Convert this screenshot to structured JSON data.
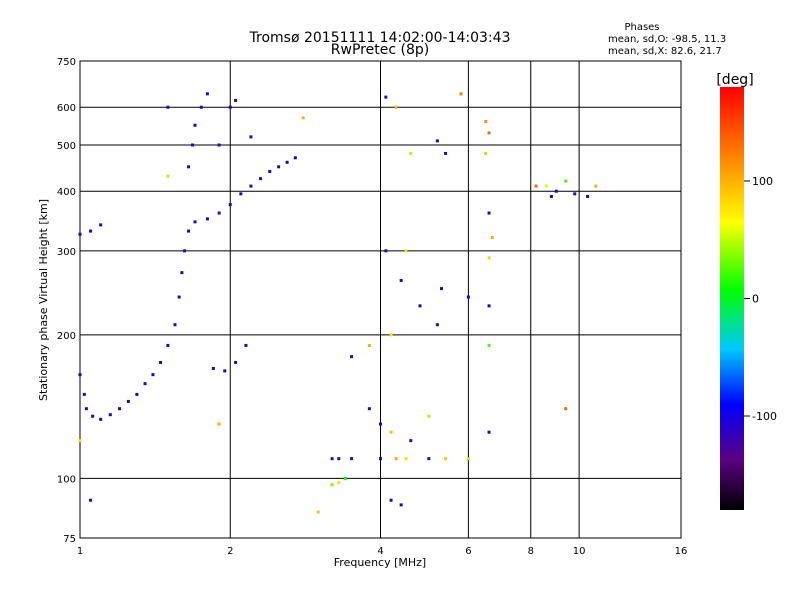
{
  "chart_data": {
    "type": "scatter",
    "title": "Tromsø 20151111 14:02:00-14:03:43",
    "subtitle": "RwPretec (8p)",
    "xlabel": "Frequency [MHz]",
    "ylabel": "Stationary phase Virtual Height [km]",
    "x_scale": "log",
    "y_scale": "log",
    "xlim": [
      1,
      16
    ],
    "ylim": [
      75,
      750
    ],
    "grid": true,
    "x_ticks": [
      1,
      2,
      4,
      6,
      8,
      10,
      16
    ],
    "y_ticks": [
      75,
      100,
      200,
      300,
      400,
      500,
      600,
      750
    ],
    "x_gridlines": [
      2,
      4,
      6,
      8,
      10
    ],
    "y_gridlines": [
      100,
      200,
      300,
      400,
      500,
      600
    ],
    "stats": {
      "heading": "Phases",
      "line_o": "mean, sd,O: -98.5, 11.3",
      "line_x": "mean, sd,X:  82.6, 21.7"
    },
    "colorbar": {
      "label": "[deg]",
      "range": [
        -180,
        180
      ],
      "ticks": [
        100,
        0,
        -100
      ],
      "colors": [
        "#000000",
        "#5a0080",
        "#0000ff",
        "#00c8ff",
        "#00ff00",
        "#ffff00",
        "#ff8000",
        "#ff0000"
      ]
    },
    "series": [
      {
        "points": [
          {
            "x": 1.0,
            "y": 165,
            "c": -95
          },
          {
            "x": 1.02,
            "y": 150,
            "c": -100
          },
          {
            "x": 1.03,
            "y": 140,
            "c": -97
          },
          {
            "x": 1.06,
            "y": 135,
            "c": -102
          },
          {
            "x": 1.1,
            "y": 133,
            "c": -96
          },
          {
            "x": 1.15,
            "y": 136,
            "c": -99
          },
          {
            "x": 1.2,
            "y": 140,
            "c": -104
          },
          {
            "x": 1.25,
            "y": 145,
            "c": -97
          },
          {
            "x": 1.3,
            "y": 150,
            "c": -95
          },
          {
            "x": 1.35,
            "y": 158,
            "c": -100
          },
          {
            "x": 1.4,
            "y": 165,
            "c": -98
          },
          {
            "x": 1.45,
            "y": 175,
            "c": -103
          },
          {
            "x": 1.5,
            "y": 190,
            "c": -96
          },
          {
            "x": 1.55,
            "y": 210,
            "c": -99
          },
          {
            "x": 1.58,
            "y": 240,
            "c": -101
          },
          {
            "x": 1.6,
            "y": 270,
            "c": -97
          },
          {
            "x": 1.62,
            "y": 300,
            "c": -100
          },
          {
            "x": 1.65,
            "y": 330,
            "c": -96
          },
          {
            "x": 1.7,
            "y": 345,
            "c": -102
          },
          {
            "x": 1.8,
            "y": 350,
            "c": -98
          },
          {
            "x": 1.9,
            "y": 360,
            "c": -100
          },
          {
            "x": 2.0,
            "y": 375,
            "c": -97
          },
          {
            "x": 2.1,
            "y": 395,
            "c": -101
          },
          {
            "x": 2.2,
            "y": 410,
            "c": -99
          },
          {
            "x": 2.3,
            "y": 425,
            "c": -96
          },
          {
            "x": 2.4,
            "y": 440,
            "c": -100
          },
          {
            "x": 2.5,
            "y": 450,
            "c": -98
          },
          {
            "x": 2.6,
            "y": 460,
            "c": -102
          },
          {
            "x": 2.7,
            "y": 470,
            "c": -97
          },
          {
            "x": 1.65,
            "y": 450,
            "c": -99
          },
          {
            "x": 1.68,
            "y": 500,
            "c": -100
          },
          {
            "x": 1.7,
            "y": 550,
            "c": -98
          },
          {
            "x": 1.75,
            "y": 600,
            "c": -101
          },
          {
            "x": 1.8,
            "y": 640,
            "c": -97
          },
          {
            "x": 1.9,
            "y": 500,
            "c": -99
          },
          {
            "x": 2.0,
            "y": 600,
            "c": -100
          },
          {
            "x": 2.05,
            "y": 620,
            "c": -96
          },
          {
            "x": 2.2,
            "y": 520,
            "c": -98
          },
          {
            "x": 1.0,
            "y": 325,
            "c": -100
          },
          {
            "x": 1.05,
            "y": 330,
            "c": -97
          },
          {
            "x": 1.1,
            "y": 340,
            "c": -101
          },
          {
            "x": 1.85,
            "y": 170,
            "c": -96
          },
          {
            "x": 1.95,
            "y": 168,
            "c": -99
          },
          {
            "x": 2.05,
            "y": 175,
            "c": -100
          },
          {
            "x": 2.15,
            "y": 190,
            "c": -98
          },
          {
            "x": 3.2,
            "y": 110,
            "c": -100
          },
          {
            "x": 3.3,
            "y": 110,
            "c": -97
          },
          {
            "x": 3.5,
            "y": 110,
            "c": -101
          },
          {
            "x": 3.2,
            "y": 97,
            "c": 50
          },
          {
            "x": 3.3,
            "y": 98,
            "c": 90
          },
          {
            "x": 3.4,
            "y": 100,
            "c": 20
          },
          {
            "x": 4.1,
            "y": 630,
            "c": -100
          },
          {
            "x": 4.3,
            "y": 600,
            "c": 110
          },
          {
            "x": 4.6,
            "y": 480,
            "c": 60
          },
          {
            "x": 5.2,
            "y": 510,
            "c": -99
          },
          {
            "x": 5.4,
            "y": 480,
            "c": -97
          },
          {
            "x": 5.8,
            "y": 640,
            "c": 130
          },
          {
            "x": 6.5,
            "y": 560,
            "c": 120
          },
          {
            "x": 6.6,
            "y": 530,
            "c": 140
          },
          {
            "x": 6.5,
            "y": 480,
            "c": 100
          },
          {
            "x": 6.6,
            "y": 360,
            "c": -100
          },
          {
            "x": 6.7,
            "y": 320,
            "c": 110
          },
          {
            "x": 6.6,
            "y": 290,
            "c": 95
          },
          {
            "x": 4.1,
            "y": 300,
            "c": -98
          },
          {
            "x": 4.4,
            "y": 260,
            "c": -101
          },
          {
            "x": 4.5,
            "y": 300,
            "c": 90
          },
          {
            "x": 4.8,
            "y": 230,
            "c": -99
          },
          {
            "x": 5.2,
            "y": 210,
            "c": -100
          },
          {
            "x": 5.3,
            "y": 250,
            "c": -97
          },
          {
            "x": 6.0,
            "y": 240,
            "c": -100
          },
          {
            "x": 6.6,
            "y": 230,
            "c": -98
          },
          {
            "x": 6.6,
            "y": 190,
            "c": 40
          },
          {
            "x": 3.5,
            "y": 180,
            "c": -99
          },
          {
            "x": 3.8,
            "y": 190,
            "c": 110
          },
          {
            "x": 4.2,
            "y": 200,
            "c": 90
          },
          {
            "x": 3.8,
            "y": 140,
            "c": -100
          },
          {
            "x": 4.0,
            "y": 130,
            "c": -97
          },
          {
            "x": 4.2,
            "y": 125,
            "c": 100
          },
          {
            "x": 4.6,
            "y": 120,
            "c": -101
          },
          {
            "x": 5.0,
            "y": 135,
            "c": 60
          },
          {
            "x": 6.6,
            "y": 125,
            "c": -99
          },
          {
            "x": 4.0,
            "y": 110,
            "c": -100
          },
          {
            "x": 4.3,
            "y": 110,
            "c": 110
          },
          {
            "x": 4.5,
            "y": 110,
            "c": 90
          },
          {
            "x": 5.0,
            "y": 110,
            "c": -98
          },
          {
            "x": 5.4,
            "y": 110,
            "c": 100
          },
          {
            "x": 6.0,
            "y": 110,
            "c": 60
          },
          {
            "x": 4.2,
            "y": 90,
            "c": -99
          },
          {
            "x": 4.4,
            "y": 88,
            "c": -97
          },
          {
            "x": 3.0,
            "y": 85,
            "c": 100
          },
          {
            "x": 8.6,
            "y": 410,
            "c": 70
          },
          {
            "x": 9.0,
            "y": 400,
            "c": -100
          },
          {
            "x": 9.4,
            "y": 420,
            "c": 40
          },
          {
            "x": 8.8,
            "y": 390,
            "c": -98
          },
          {
            "x": 9.8,
            "y": 395,
            "c": -101
          },
          {
            "x": 10.8,
            "y": 410,
            "c": 110
          },
          {
            "x": 8.2,
            "y": 410,
            "c": 140
          },
          {
            "x": 9.4,
            "y": 140,
            "c": 140
          },
          {
            "x": 10.4,
            "y": 390,
            "c": -97
          },
          {
            "x": 1.05,
            "y": 90,
            "c": -100
          },
          {
            "x": 1.0,
            "y": 120,
            "c": 90
          },
          {
            "x": 1.9,
            "y": 130,
            "c": 110
          },
          {
            "x": 1.5,
            "y": 430,
            "c": 60
          },
          {
            "x": 1.5,
            "y": 600,
            "c": -99
          },
          {
            "x": 2.8,
            "y": 570,
            "c": 110
          }
        ]
      }
    ]
  }
}
